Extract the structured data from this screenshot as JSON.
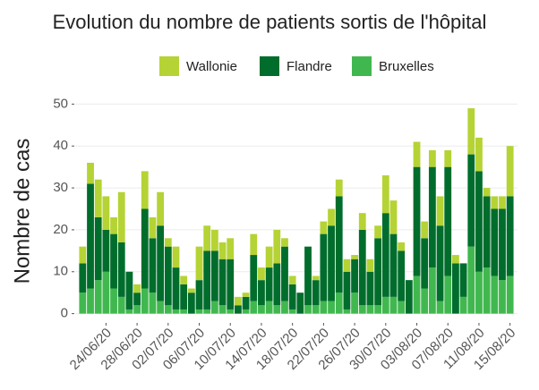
{
  "chart_data": {
    "type": "stacked_bar",
    "title": "Evolution du nombre de patients sortis de l'hôpital",
    "y_label": "Nombre de cas",
    "categories": [
      null,
      null,
      null,
      "24/06/20",
      null,
      null,
      null,
      "28/06/20",
      null,
      null,
      null,
      "02/07/20",
      null,
      null,
      null,
      "06/07/20",
      null,
      null,
      null,
      "10/07/20",
      null,
      null,
      null,
      "14/07/20",
      null,
      null,
      null,
      "18/07/20",
      null,
      null,
      null,
      "22/07/20",
      null,
      null,
      null,
      "26/07/20",
      null,
      null,
      null,
      "30/07/20",
      null,
      null,
      null,
      "03/08/20",
      null,
      null,
      null,
      "07/08/20",
      null,
      null,
      null,
      "11/08/20",
      null,
      null,
      null,
      "15/08/20"
    ],
    "series": [
      {
        "name": "Wallonie",
        "color": "#b5d334",
        "values": [
          4,
          5,
          9,
          8,
          4,
          12,
          0,
          2,
          9,
          5,
          8,
          2,
          5,
          2,
          1,
          8,
          6,
          5,
          4,
          5,
          2,
          1,
          5,
          3,
          5,
          8,
          2,
          2,
          0,
          0,
          1,
          3,
          4,
          4,
          3,
          1,
          4,
          3,
          3,
          9,
          8,
          2,
          0,
          6,
          4,
          4,
          7,
          4,
          2,
          0,
          11,
          8,
          2,
          3,
          3,
          12
        ]
      },
      {
        "name": "Flandre",
        "color": "#006d2c",
        "values": [
          7,
          25,
          15,
          10,
          13,
          13,
          9,
          3,
          19,
          13,
          18,
          14,
          10,
          6,
          5,
          7,
          14,
          12,
          11,
          12,
          2,
          3,
          11,
          6,
          8,
          10,
          13,
          6,
          5,
          14,
          6,
          16,
          18,
          23,
          9,
          8,
          18,
          8,
          16,
          20,
          15,
          12,
          8,
          26,
          12,
          24,
          18,
          26,
          12,
          8,
          22,
          24,
          17,
          16,
          17,
          19
        ]
      },
      {
        "name": "Bruxelles",
        "color": "#41b84f",
        "values": [
          5,
          6,
          8,
          10,
          6,
          4,
          1,
          2,
          6,
          5,
          3,
          2,
          1,
          1,
          0,
          1,
          1,
          3,
          2,
          1,
          0,
          1,
          3,
          2,
          3,
          2,
          3,
          1,
          0,
          2,
          2,
          3,
          3,
          5,
          1,
          5,
          2,
          2,
          2,
          4,
          4,
          3,
          0,
          9,
          6,
          11,
          3,
          9,
          0,
          4,
          16,
          10,
          11,
          9,
          8,
          9
        ]
      }
    ],
    "ylim": [
      -2,
      52
    ],
    "yticks": [
      0,
      10,
      20,
      30,
      40,
      50
    ],
    "grid": true,
    "legend": "top"
  }
}
